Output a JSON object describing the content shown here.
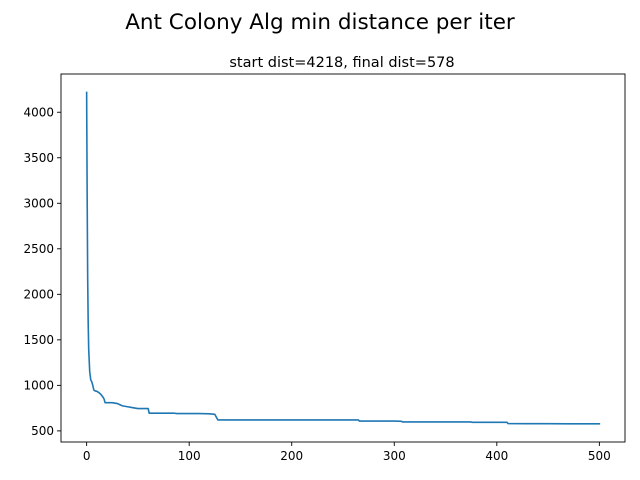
{
  "figure": {
    "suptitle": "Ant Colony Alg min distance per iter",
    "background": "#ffffff"
  },
  "chart_data": {
    "type": "line",
    "title": "start dist=4218, final dist=578",
    "xlabel": "",
    "ylabel": "",
    "xlim": [
      -25,
      525
    ],
    "ylim": [
      378,
      4420
    ],
    "xticks": [
      0,
      100,
      200,
      300,
      400,
      500
    ],
    "yticks": [
      500,
      1000,
      1500,
      2000,
      2500,
      3000,
      3500,
      4000
    ],
    "grid": false,
    "legend": "none",
    "series": [
      {
        "color": "#1f77b4",
        "x": [
          0,
          0.5,
          1,
          1.5,
          2,
          3,
          4,
          5,
          6,
          7,
          8,
          10,
          12,
          14,
          16,
          17,
          18,
          20,
          25,
          30,
          32,
          35,
          40,
          45,
          50,
          55,
          60,
          61,
          70,
          85,
          88,
          100,
          110,
          120,
          125,
          127,
          128,
          140,
          160,
          180,
          200,
          220,
          240,
          260,
          265,
          266,
          280,
          300,
          307,
          308,
          320,
          340,
          360,
          375,
          376,
          390,
          400,
          410,
          411,
          430,
          450,
          470,
          490,
          500
        ],
        "y": [
          4218,
          3100,
          2200,
          1700,
          1400,
          1150,
          1060,
          1040,
          1000,
          950,
          940,
          935,
          920,
          900,
          870,
          850,
          810,
          810,
          810,
          800,
          790,
          775,
          765,
          755,
          745,
          745,
          745,
          695,
          695,
          695,
          690,
          690,
          690,
          688,
          682,
          640,
          620,
          620,
          620,
          620,
          620,
          620,
          620,
          620,
          620,
          608,
          608,
          608,
          605,
          598,
          598,
          598,
          598,
          598,
          594,
          594,
          594,
          594,
          580,
          579,
          579,
          578,
          578,
          578
        ]
      }
    ]
  }
}
